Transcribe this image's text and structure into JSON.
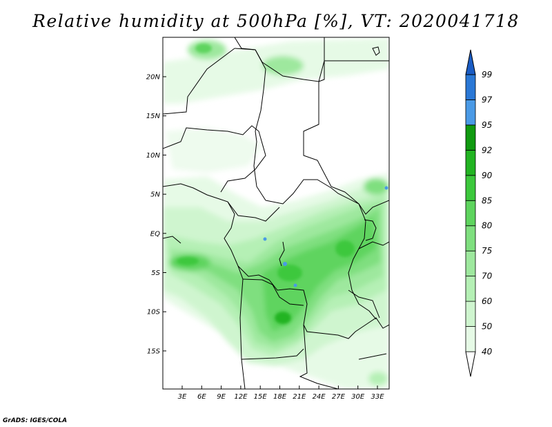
{
  "title": "Relative humidity at 500hPa [%], VT: 2020041718",
  "footer": "GrADS: IGES/COLA",
  "map": {
    "variable": "Relative humidity",
    "level": "500hPa",
    "units": "%",
    "valid_time": "2020041718",
    "lon_labels": [
      "3E",
      "6E",
      "9E",
      "12E",
      "15E",
      "18E",
      "21E",
      "24E",
      "27E",
      "30E",
      "33E"
    ],
    "lat_labels": [
      "20N",
      "15N",
      "10N",
      "5N",
      "EQ",
      "5S",
      "10S",
      "15S"
    ]
  },
  "colorbar": {
    "levels": [
      "40",
      "50",
      "60",
      "70",
      "75",
      "80",
      "85",
      "90",
      "92",
      "95",
      "97",
      "99"
    ],
    "colors": [
      "#ffffff",
      "#e6fae6",
      "#cff5cf",
      "#b5f0b5",
      "#9ee89e",
      "#7fdf7f",
      "#5ed45e",
      "#3cc83c",
      "#22b422",
      "#109a10",
      "#4a9ae6",
      "#2a78d6",
      "#1a5cc4"
    ]
  }
}
